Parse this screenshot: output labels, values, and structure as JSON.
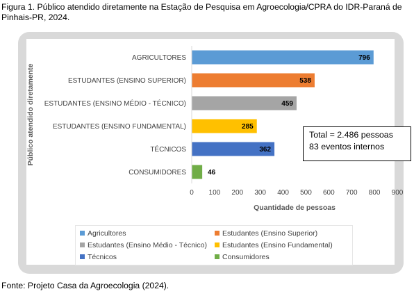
{
  "caption": "Figura 1. Público atendido diretamente na Estação de Pesquisa em Agroecologia/CPRA do IDR-Paraná de Pinhais-PR, 2024.",
  "source": "Fonte: Projeto Casa da Agroecologia (2024).",
  "annotation": {
    "line1": "Total = 2.486 pessoas",
    "line2": "83 eventos internos"
  },
  "chart_data": {
    "type": "bar",
    "orientation": "horizontal",
    "categories": [
      "AGRICULTORES",
      "ESTUDANTES (ENSINO SUPERIOR)",
      "ESTUDANTES (ENSINO MÉDIO - TÉCNICO)",
      "ESTUDANTES (ENSINO FUNDAMENTAL)",
      "TÉCNICOS",
      "CONSUMIDORES"
    ],
    "values": [
      796,
      538,
      459,
      285,
      362,
      46
    ],
    "colors": [
      "#5b9bd5",
      "#ed7d31",
      "#a5a5a5",
      "#ffc000",
      "#4472c4",
      "#70ad47"
    ],
    "legend": [
      "Agricultores",
      "Estudantes (Ensino Superior)",
      "Estudantes (Ensino Médio - Técnico)",
      "Estudantes (Ensino Fundamental)",
      "Técnicos",
      "Consumidores"
    ],
    "xlabel": "Quantidade de pessoas",
    "ylabel": "Público atendido diretamente",
    "xlim": [
      0,
      900
    ],
    "xticks": [
      0,
      100,
      200,
      300,
      400,
      500,
      600,
      700,
      800,
      900
    ],
    "grid": false,
    "legend_position": "bottom"
  }
}
